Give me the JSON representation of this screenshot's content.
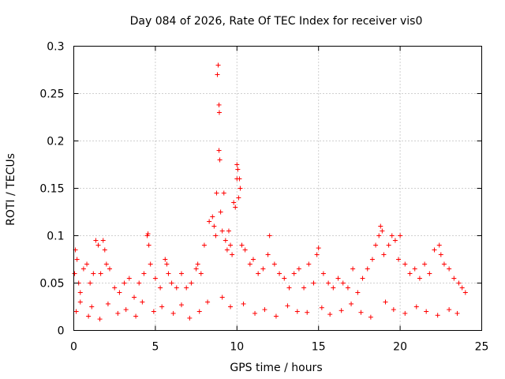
{
  "chart_data": {
    "type": "scatter",
    "title": "Day 084 of 2026, Rate Of TEC Index for receiver vis0",
    "xlabel": "GPS time / hours",
    "ylabel": "ROTI / TECUs",
    "xlim": [
      0,
      25
    ],
    "ylim": [
      0,
      0.3
    ],
    "xticks": [
      0,
      5,
      10,
      15,
      20,
      25
    ],
    "xtick_labels": [
      "0",
      "5",
      "10",
      "15",
      "20",
      "25"
    ],
    "yticks": [
      0,
      0.05,
      0.1,
      0.15,
      0.2,
      0.25,
      0.3
    ],
    "ytick_labels": [
      "0",
      "0.05",
      "0.1",
      "0.15",
      "0.2",
      "0.25",
      "0.3"
    ],
    "grid": true,
    "marker": "+",
    "marker_color": "#ff0000",
    "series": [
      {
        "name": "vis0",
        "x": [
          0.05,
          0.1,
          0.2,
          0.3,
          0.4,
          0.6,
          0.8,
          1.0,
          1.2,
          1.35,
          1.5,
          1.65,
          1.8,
          1.9,
          2.0,
          2.2,
          2.5,
          2.8,
          3.1,
          3.4,
          3.7,
          4.0,
          4.3,
          4.5,
          4.55,
          4.6,
          4.7,
          5.0,
          5.3,
          5.6,
          5.7,
          5.8,
          6.0,
          6.3,
          6.6,
          6.9,
          7.2,
          7.5,
          7.6,
          7.8,
          8.0,
          8.3,
          8.5,
          8.6,
          8.7,
          8.75,
          8.8,
          8.85,
          8.9,
          8.9,
          8.92,
          8.95,
          9.0,
          9.1,
          9.2,
          9.3,
          9.4,
          9.5,
          9.6,
          9.7,
          9.8,
          9.9,
          10.0,
          10.0,
          10.05,
          10.1,
          10.15,
          10.2,
          10.3,
          10.5,
          10.8,
          11.0,
          11.3,
          11.6,
          11.9,
          12.0,
          12.3,
          12.6,
          12.9,
          13.2,
          13.5,
          13.8,
          14.1,
          14.4,
          14.7,
          14.9,
          15.0,
          15.3,
          15.6,
          15.9,
          16.2,
          16.5,
          16.8,
          17.1,
          17.4,
          17.7,
          18.0,
          18.3,
          18.5,
          18.7,
          18.8,
          18.9,
          19.0,
          19.3,
          19.5,
          19.7,
          19.9,
          20.0,
          20.3,
          20.6,
          20.9,
          21.2,
          21.5,
          21.8,
          22.1,
          22.4,
          22.5,
          22.7,
          23.0,
          23.3,
          23.6,
          23.8,
          24.0,
          0.15,
          0.4,
          0.9,
          1.1,
          1.6,
          2.1,
          2.7,
          3.2,
          3.8,
          4.2,
          4.9,
          5.4,
          6.1,
          6.6,
          7.1,
          7.7,
          8.2,
          9.1,
          9.6,
          10.4,
          11.1,
          11.7,
          12.4,
          13.1,
          13.7,
          14.3,
          15.2,
          15.7,
          16.4,
          17.0,
          17.6,
          18.2,
          19.1,
          19.6,
          20.3,
          21.0,
          21.6,
          22.3,
          23.0,
          23.5
        ],
        "y": [
          0.06,
          0.085,
          0.075,
          0.05,
          0.04,
          0.065,
          0.07,
          0.05,
          0.06,
          0.095,
          0.09,
          0.06,
          0.095,
          0.085,
          0.07,
          0.065,
          0.045,
          0.04,
          0.05,
          0.055,
          0.035,
          0.05,
          0.06,
          0.1,
          0.102,
          0.09,
          0.07,
          0.055,
          0.045,
          0.075,
          0.07,
          0.06,
          0.05,
          0.045,
          0.06,
          0.045,
          0.05,
          0.065,
          0.07,
          0.06,
          0.09,
          0.115,
          0.12,
          0.11,
          0.1,
          0.145,
          0.27,
          0.28,
          0.238,
          0.19,
          0.23,
          0.18,
          0.125,
          0.105,
          0.145,
          0.095,
          0.085,
          0.105,
          0.09,
          0.08,
          0.135,
          0.13,
          0.175,
          0.16,
          0.17,
          0.14,
          0.16,
          0.15,
          0.09,
          0.085,
          0.07,
          0.075,
          0.06,
          0.065,
          0.08,
          0.1,
          0.07,
          0.06,
          0.055,
          0.045,
          0.06,
          0.065,
          0.045,
          0.07,
          0.05,
          0.08,
          0.087,
          0.06,
          0.05,
          0.045,
          0.055,
          0.05,
          0.045,
          0.065,
          0.04,
          0.055,
          0.065,
          0.075,
          0.09,
          0.1,
          0.11,
          0.105,
          0.08,
          0.09,
          0.1,
          0.095,
          0.075,
          0.1,
          0.07,
          0.06,
          0.065,
          0.055,
          0.07,
          0.06,
          0.085,
          0.09,
          0.08,
          0.07,
          0.065,
          0.055,
          0.05,
          0.045,
          0.04,
          0.02,
          0.03,
          0.015,
          0.025,
          0.012,
          0.028,
          0.018,
          0.022,
          0.015,
          0.03,
          0.02,
          0.025,
          0.018,
          0.027,
          0.013,
          0.02,
          0.03,
          0.035,
          0.025,
          0.028,
          0.018,
          0.022,
          0.015,
          0.026,
          0.02,
          0.019,
          0.024,
          0.017,
          0.021,
          0.028,
          0.019,
          0.014,
          0.03,
          0.022,
          0.018,
          0.025,
          0.02,
          0.016,
          0.022,
          0.018
        ]
      }
    ]
  }
}
